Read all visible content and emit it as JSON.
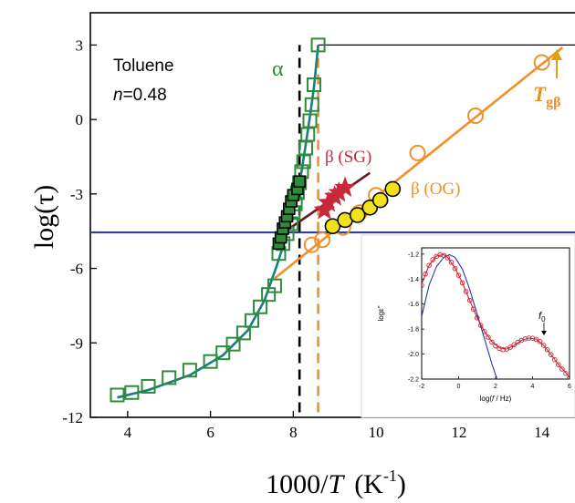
{
  "chart_data": {
    "type": "scatter",
    "xlabel_main": "1000/",
    "xlabel_italic": "T",
    "xlabel_unit": "(K",
    "xlabel_exp": "-1",
    "xlabel_close": ")",
    "ylabel": "log(τ)",
    "xlim": [
      3.1,
      15.0
    ],
    "ylim": [
      -12,
      4.3
    ],
    "x_ticks": [
      4,
      6,
      8,
      10,
      12,
      14
    ],
    "y_ticks": [
      3,
      0,
      -3,
      -6,
      -9,
      -12
    ],
    "annotations": {
      "system": "Toluene",
      "n_italic": "n",
      "n_value": "=0.48",
      "alpha": "α",
      "beta_sg": "β (SG)",
      "beta_og": "β (OG)",
      "tgb_italic": "T",
      "tgb_sub": "gβ"
    },
    "colors": {
      "alpha": "#2e8b3a",
      "alpha_fill": "#2e8b3a",
      "vft_curve": "#17807a",
      "beta_og": "#f0902a",
      "beta_sg": "#c8283a",
      "beta_sg_line": "#6e1420",
      "blue_line": "#2f3f9a",
      "yellow": "#f2e21a",
      "dash_black": "#000000",
      "dash_orange": "#f0902a"
    },
    "horizontal_lines": [
      {
        "name": "top-reference-line",
        "y": 3,
        "color": "black",
        "x_start": 8.6
      },
      {
        "name": "blue-reference-line",
        "y": -4.55,
        "color": "blue",
        "x_start": 3.1
      }
    ],
    "vertical_dashed_lines": [
      {
        "name": "black-dashed-line",
        "x": 8.15,
        "y_range": [
          -11.8,
          3.0
        ]
      },
      {
        "name": "orange-dashed-line",
        "x": 8.6,
        "y_range": [
          -11.8,
          3.0
        ]
      }
    ],
    "series": [
      {
        "kind": "alpha_open_squares",
        "points": [
          [
            3.75,
            -11.1
          ],
          [
            4.1,
            -11.0
          ],
          [
            4.5,
            -10.75
          ],
          [
            5.0,
            -10.4
          ],
          [
            5.5,
            -10.1
          ],
          [
            6.0,
            -9.75
          ],
          [
            6.3,
            -9.4
          ],
          [
            6.55,
            -9.05
          ],
          [
            6.8,
            -8.6
          ],
          [
            7.0,
            -8.1
          ],
          [
            7.2,
            -7.55
          ],
          [
            7.4,
            -7.05
          ],
          [
            7.55,
            -6.7
          ],
          [
            7.65,
            -5.4
          ],
          [
            7.75,
            -5.0
          ],
          [
            7.85,
            -4.6
          ],
          [
            7.95,
            -4.2
          ],
          [
            8.0,
            -3.75
          ],
          [
            8.05,
            -3.4
          ],
          [
            8.1,
            -2.95
          ],
          [
            8.15,
            -2.55
          ],
          [
            8.2,
            -2.1
          ],
          [
            8.25,
            -1.7
          ],
          [
            8.3,
            -1.15
          ],
          [
            8.35,
            -0.6
          ],
          [
            8.4,
            -0.05
          ],
          [
            8.45,
            0.6
          ],
          [
            8.5,
            1.4
          ],
          [
            8.6,
            3.0
          ]
        ]
      },
      {
        "kind": "alpha_filled_squares",
        "points": [
          [
            7.65,
            -5.0
          ],
          [
            7.7,
            -4.75
          ],
          [
            7.75,
            -4.4
          ],
          [
            7.8,
            -4.15
          ],
          [
            7.85,
            -3.9
          ],
          [
            7.9,
            -3.6
          ],
          [
            7.95,
            -3.3
          ],
          [
            8.0,
            -3.05
          ],
          [
            8.1,
            -2.8
          ],
          [
            8.15,
            -2.5
          ]
        ]
      },
      {
        "kind": "beta_og_open_circles",
        "points": [
          [
            8.45,
            -5.05
          ],
          [
            8.7,
            -4.85
          ],
          [
            9.2,
            -4.35
          ],
          [
            9.6,
            -3.75
          ],
          [
            10.0,
            -3.05
          ],
          [
            11.0,
            -1.35
          ],
          [
            12.4,
            0.15
          ],
          [
            14.0,
            2.3
          ]
        ]
      },
      {
        "kind": "beta_og_filled_circles",
        "points": [
          [
            8.95,
            -4.3
          ],
          [
            9.25,
            -4.05
          ],
          [
            9.55,
            -3.85
          ],
          [
            9.85,
            -3.55
          ],
          [
            10.1,
            -3.25
          ],
          [
            10.4,
            -2.8
          ]
        ]
      },
      {
        "kind": "beta_sg_stars",
        "points": [
          [
            8.75,
            -3.65
          ],
          [
            8.85,
            -3.35
          ],
          [
            9.0,
            -3.1
          ],
          [
            9.1,
            -2.95
          ],
          [
            9.25,
            -2.75
          ]
        ]
      }
    ],
    "fit_lines": [
      {
        "kind": "vft_curve",
        "points": [
          [
            3.75,
            -11.2
          ],
          [
            4.5,
            -10.9
          ],
          [
            5.5,
            -10.3
          ],
          [
            6.3,
            -9.5
          ],
          [
            6.9,
            -8.5
          ],
          [
            7.3,
            -7.3
          ],
          [
            7.6,
            -5.9
          ],
          [
            7.85,
            -4.6
          ],
          [
            8.05,
            -3.3
          ],
          [
            8.2,
            -2.1
          ],
          [
            8.3,
            -1.0
          ],
          [
            8.4,
            0.1
          ],
          [
            8.5,
            1.3
          ],
          [
            8.6,
            3.0
          ]
        ]
      },
      {
        "kind": "beta_og_line",
        "points": [
          [
            7.55,
            -6.4
          ],
          [
            14.5,
            2.9
          ]
        ]
      },
      {
        "kind": "beta_sg_line",
        "points": [
          [
            7.9,
            -4.4
          ],
          [
            9.85,
            -2.15
          ]
        ]
      }
    ],
    "inset": {
      "type": "line",
      "xlabel_prefix": "log(",
      "xlabel_italic": "f",
      "xlabel_suffix": " / Hz)",
      "ylabel": "logε\"",
      "xlim": [
        -2,
        6
      ],
      "ylim": [
        -2.2,
        -1.15
      ],
      "x_ticks": [
        -2,
        0,
        2,
        4,
        6
      ],
      "y_ticks": [
        -1.2,
        -1.4,
        -1.6,
        -1.8,
        -2.0,
        -2.2
      ],
      "marker_label_italic": "f",
      "marker_label_sub": "0",
      "marker_x": 4.75,
      "series": [
        {
          "kind": "data_circles",
          "color": "#cc2030",
          "x": [
            -2.0,
            -1.8,
            -1.6,
            -1.4,
            -1.2,
            -1.0,
            -0.8,
            -0.6,
            -0.4,
            -0.2,
            0.0,
            0.2,
            0.4,
            0.6,
            0.8,
            1.0,
            1.2,
            1.4,
            1.6,
            1.8,
            2.0,
            2.2,
            2.4,
            2.6,
            2.8,
            3.0,
            3.2,
            3.4,
            3.6,
            3.8,
            4.0,
            4.2,
            4.4,
            4.6,
            4.8,
            5.0,
            5.2,
            5.4,
            5.6,
            5.8,
            6.0
          ],
          "y": [
            -1.45,
            -1.36,
            -1.29,
            -1.245,
            -1.218,
            -1.205,
            -1.21,
            -1.23,
            -1.265,
            -1.315,
            -1.37,
            -1.43,
            -1.5,
            -1.57,
            -1.64,
            -1.71,
            -1.77,
            -1.82,
            -1.865,
            -1.905,
            -1.935,
            -1.955,
            -1.965,
            -1.96,
            -1.945,
            -1.925,
            -1.905,
            -1.89,
            -1.878,
            -1.872,
            -1.873,
            -1.882,
            -1.9,
            -1.93,
            -1.965,
            -2.005,
            -2.045,
            -2.085,
            -2.12,
            -2.155,
            -2.19
          ]
        },
        {
          "kind": "fit_line",
          "color": "#2a3aa0",
          "x": [
            -2.0,
            -1.6,
            -1.2,
            -0.8,
            -0.5,
            -0.2,
            0.2,
            0.6,
            1.0,
            1.4,
            1.8,
            2.2
          ],
          "y": [
            -1.7,
            -1.45,
            -1.3,
            -1.225,
            -1.205,
            -1.225,
            -1.32,
            -1.48,
            -1.68,
            -1.88,
            -2.08,
            -2.25
          ]
        },
        {
          "kind": "fit_curve",
          "color": "#cc2030",
          "x": [
            -2.0,
            -1.6,
            -1.2,
            -0.8,
            -0.6,
            -0.2,
            0.2,
            0.6,
            1.0,
            1.4,
            1.8,
            2.2,
            2.6,
            3.0,
            3.4,
            3.8,
            4.2,
            4.6,
            5.0,
            5.4,
            5.8,
            6.0
          ],
          "y": [
            -1.44,
            -1.29,
            -1.215,
            -1.205,
            -1.225,
            -1.31,
            -1.43,
            -1.57,
            -1.71,
            -1.82,
            -1.9,
            -1.95,
            -1.96,
            -1.93,
            -1.89,
            -1.872,
            -1.88,
            -1.93,
            -2.005,
            -2.085,
            -2.15,
            -2.19
          ]
        }
      ]
    }
  }
}
